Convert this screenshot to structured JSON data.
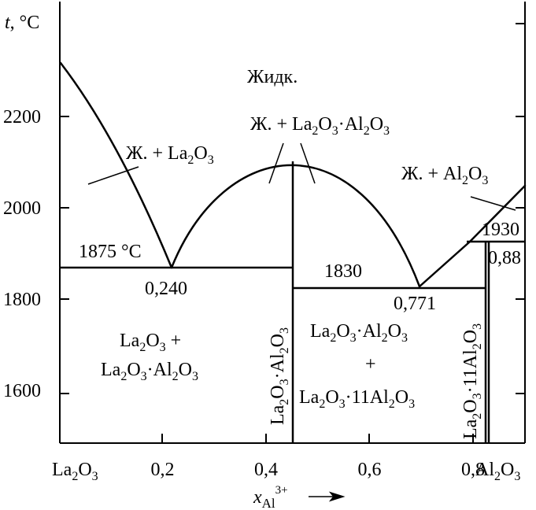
{
  "axes": {
    "y_title_var": "t",
    "y_title_unit": ", °C",
    "x_title_var": "x",
    "x_title_sub": "Al",
    "x_title_sup": "3+",
    "y_ticks": [
      {
        "value": 2200,
        "label": "2200"
      },
      {
        "value": 2000,
        "label": "2000"
      },
      {
        "value": 1800,
        "label": "1800"
      },
      {
        "value": 1600,
        "label": "1600"
      }
    ],
    "x_ticks": [
      {
        "value": 0.2,
        "label": "0,2"
      },
      {
        "value": 0.4,
        "label": "0,4"
      },
      {
        "value": 0.6,
        "label": "0,6"
      },
      {
        "value": 0.8,
        "label": "0,8"
      }
    ],
    "x_min": 0,
    "x_max": 0.905,
    "y_min": 1500,
    "y_max": 2450
  },
  "endpoints": {
    "left": {
      "base": "La",
      "s1": "2",
      "mid": "O",
      "s2": "3"
    },
    "right": {
      "base": "Al",
      "s1": "2",
      "mid": "O",
      "s2": "3"
    }
  },
  "phase_labels": {
    "liquid": "Жидк.",
    "liq_compound": {
      "a": "Ж. + La",
      "b": "2",
      "c": "O",
      "d": "3",
      "e": "·Al",
      "f": "2",
      "g": "O",
      "h": "3"
    },
    "liq_la2o3": {
      "a": "Ж. + La",
      "b": "2",
      "c": "O",
      "d": "3"
    },
    "liq_al2o3": {
      "a": "Ж. + Al",
      "b": "2",
      "c": "O",
      "d": "3"
    },
    "region_left_1": {
      "a": "La",
      "b": "2",
      "c": "O",
      "d": "3",
      "e": " +"
    },
    "region_left_2": {
      "a": "La",
      "b": "2",
      "c": "O",
      "d": "3",
      "e": "·Al",
      "f": "2",
      "g": "O",
      "h": "3"
    },
    "region_mid_1": {
      "a": "La",
      "b": "2",
      "c": "O",
      "d": "3",
      "e": "·Al",
      "f": "2",
      "g": "O",
      "h": "3"
    },
    "region_mid_plus": "+",
    "region_mid_2": {
      "a": "La",
      "b": "2",
      "c": "O",
      "d": "3",
      "e": "·11Al",
      "f": "2",
      "g": "O",
      "h": "3"
    },
    "compound_1": {
      "a": "La",
      "b": "2",
      "c": "O",
      "d": "3",
      "e": "·Al",
      "f": "2",
      "g": "O",
      "h": "3"
    },
    "compound_2": {
      "a": "La",
      "b": "2",
      "c": "O",
      "d": "3",
      "e": "·11Al",
      "f": "2",
      "g": "O",
      "h": "3"
    }
  },
  "annotations": {
    "eutectic_left_temp": "1875 °C",
    "eutectic_left_x": "0,240",
    "eutectic_right_temp": "1830",
    "eutectic_right_x": "0,771",
    "peritectic_temp": "1930",
    "peritectic_x": "0,88"
  },
  "chart_data": {
    "type": "phase-diagram",
    "system": "La2O3–Al2O3",
    "x_axis": "x(Al3+)",
    "y_axis": "t, °C",
    "ylim": [
      1500,
      2450
    ],
    "liquidus": [
      {
        "segment": "La2O3 side",
        "points": [
          [
            0.0,
            2310
          ],
          [
            0.24,
            1875
          ]
        ]
      },
      {
        "segment": "compound dome",
        "points": [
          [
            0.24,
            1875
          ],
          [
            0.5,
            2100
          ],
          [
            0.771,
            1830
          ]
        ]
      },
      {
        "segment": "Al2O3 side",
        "points": [
          [
            0.771,
            1830
          ],
          [
            0.88,
            1930
          ],
          [
            1.0,
            2050
          ]
        ]
      }
    ],
    "invariants": [
      {
        "type": "eutectic",
        "x": 0.24,
        "t": 1875
      },
      {
        "type": "congruent melting",
        "compound": "La2O3·Al2O3",
        "x": 0.5,
        "t": 2100
      },
      {
        "type": "eutectic",
        "x": 0.771,
        "t": 1830
      },
      {
        "type": "peritectic",
        "x": 0.88,
        "t": 1930
      }
    ],
    "compounds": [
      {
        "formula": "La2O3·Al2O3",
        "x": 0.5
      },
      {
        "formula": "La2O3·11Al2O3",
        "x": 0.917
      }
    ]
  }
}
